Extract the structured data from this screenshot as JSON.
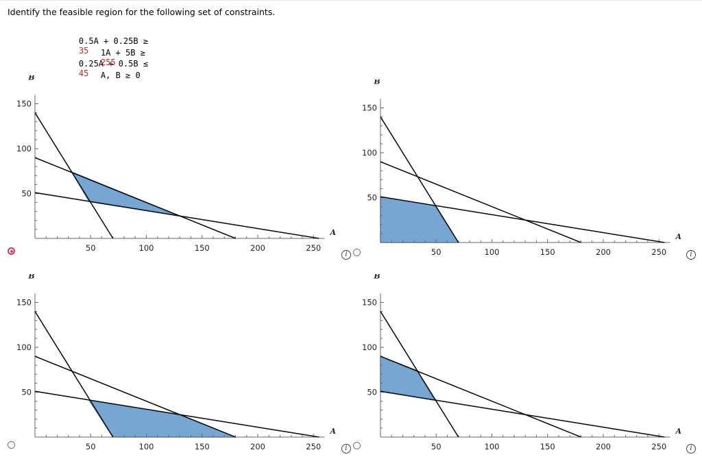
{
  "question": {
    "text": "Identify the feasible region for the following set of constraints."
  },
  "constraints": [
    {
      "lhs": "0.5A + 0.25B ≥",
      "rhs": "35"
    },
    {
      "lhs": "1A + 5B ≥",
      "rhs": "255"
    },
    {
      "lhs": "0.25A + 0.5B ≤",
      "rhs": "45"
    },
    {
      "lhs": "A, B ≥ 0",
      "rhs": ""
    }
  ],
  "colors": {
    "region_fill": "#77a6d3",
    "region_stroke": "#5e8fc0",
    "radio_selected": "#d8336a",
    "rhs_text": "#c8281e"
  },
  "icons": {
    "info": "info-icon",
    "radio": "radio-button"
  },
  "info_glyph": "i",
  "options": [
    {
      "id": "option-a",
      "selected": true
    },
    {
      "id": "option-b",
      "selected": false
    },
    {
      "id": "option-c",
      "selected": false
    },
    {
      "id": "option-d",
      "selected": false
    }
  ],
  "chart_data": [
    {
      "type": "line",
      "xlabel": "A",
      "ylabel": "B",
      "xlim": [
        0,
        260
      ],
      "ylim": [
        0,
        160
      ],
      "xticks": [
        50,
        100,
        150,
        200,
        250
      ],
      "yticks": [
        50,
        100,
        150
      ],
      "lines": [
        {
          "x": [
            0,
            70
          ],
          "y": [
            140,
            0
          ]
        },
        {
          "x": [
            0,
            255
          ],
          "y": [
            51,
            0
          ]
        },
        {
          "x": [
            0,
            180
          ],
          "y": [
            90,
            0
          ]
        }
      ],
      "region": {
        "x": [
          33,
          130,
          48.6
        ],
        "y": [
          74,
          25,
          41
        ]
      }
    },
    {
      "type": "line",
      "xlabel": "A",
      "ylabel": "B",
      "xlim": [
        0,
        260
      ],
      "ylim": [
        0,
        160
      ],
      "xticks": [
        50,
        100,
        150,
        200,
        250
      ],
      "yticks": [
        50,
        100,
        150
      ],
      "lines": [
        {
          "x": [
            0,
            70
          ],
          "y": [
            140,
            0
          ]
        },
        {
          "x": [
            0,
            255
          ],
          "y": [
            51,
            0
          ]
        },
        {
          "x": [
            0,
            180
          ],
          "y": [
            90,
            0
          ]
        }
      ],
      "region": {
        "x": [
          0,
          48.6,
          70,
          0
        ],
        "y": [
          51,
          41,
          0,
          0
        ]
      }
    },
    {
      "type": "line",
      "xlabel": "A",
      "ylabel": "B",
      "xlim": [
        0,
        260
      ],
      "ylim": [
        0,
        160
      ],
      "xticks": [
        50,
        100,
        150,
        200,
        250
      ],
      "yticks": [
        50,
        100,
        150
      ],
      "lines": [
        {
          "x": [
            0,
            70
          ],
          "y": [
            140,
            0
          ]
        },
        {
          "x": [
            0,
            255
          ],
          "y": [
            51,
            0
          ]
        },
        {
          "x": [
            0,
            180
          ],
          "y": [
            90,
            0
          ]
        }
      ],
      "region": {
        "x": [
          48.6,
          130,
          180,
          70
        ],
        "y": [
          41,
          25,
          0,
          0
        ]
      }
    },
    {
      "type": "line",
      "xlabel": "A",
      "ylabel": "B",
      "xlim": [
        0,
        260
      ],
      "ylim": [
        0,
        160
      ],
      "xticks": [
        50,
        100,
        150,
        200,
        250
      ],
      "yticks": [
        50,
        100,
        150
      ],
      "lines": [
        {
          "x": [
            0,
            70
          ],
          "y": [
            140,
            0
          ]
        },
        {
          "x": [
            0,
            255
          ],
          "y": [
            51,
            0
          ]
        },
        {
          "x": [
            0,
            180
          ],
          "y": [
            90,
            0
          ]
        }
      ],
      "region": {
        "x": [
          0,
          33,
          48.6,
          0
        ],
        "y": [
          90,
          74,
          41,
          51
        ]
      }
    }
  ]
}
